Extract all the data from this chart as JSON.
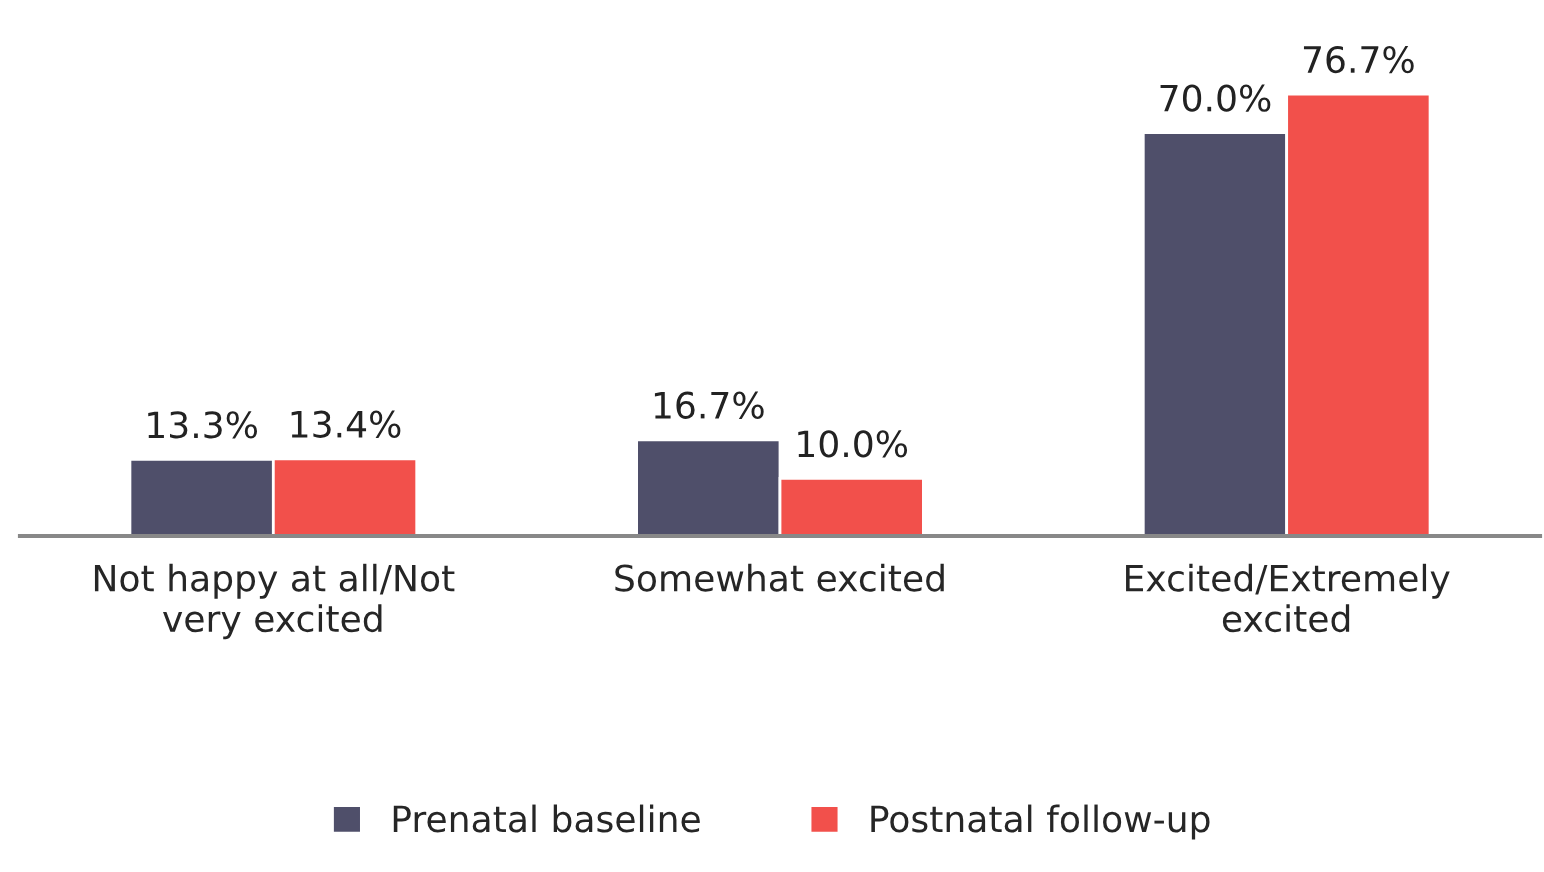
{
  "chart_data": {
    "type": "bar",
    "categories": [
      "Not happy at all/Not\nvery excited",
      "Somewhat excited",
      "Excited/Extremely\nexcited"
    ],
    "series": [
      {
        "name": "Prenatal baseline",
        "color": "#4f4f6a",
        "values": [
          13.3,
          16.7,
          70.0
        ],
        "value_labels": [
          "13.3%",
          "16.7%",
          "70.0%"
        ]
      },
      {
        "name": "Postnatal follow-up",
        "color": "#f2504b",
        "values": [
          13.4,
          10.0,
          76.7
        ],
        "value_labels": [
          "13.4%",
          "10.0%",
          "76.7%"
        ]
      }
    ],
    "tick_labels": "x",
    "grid": false,
    "legend": "bottom"
  }
}
